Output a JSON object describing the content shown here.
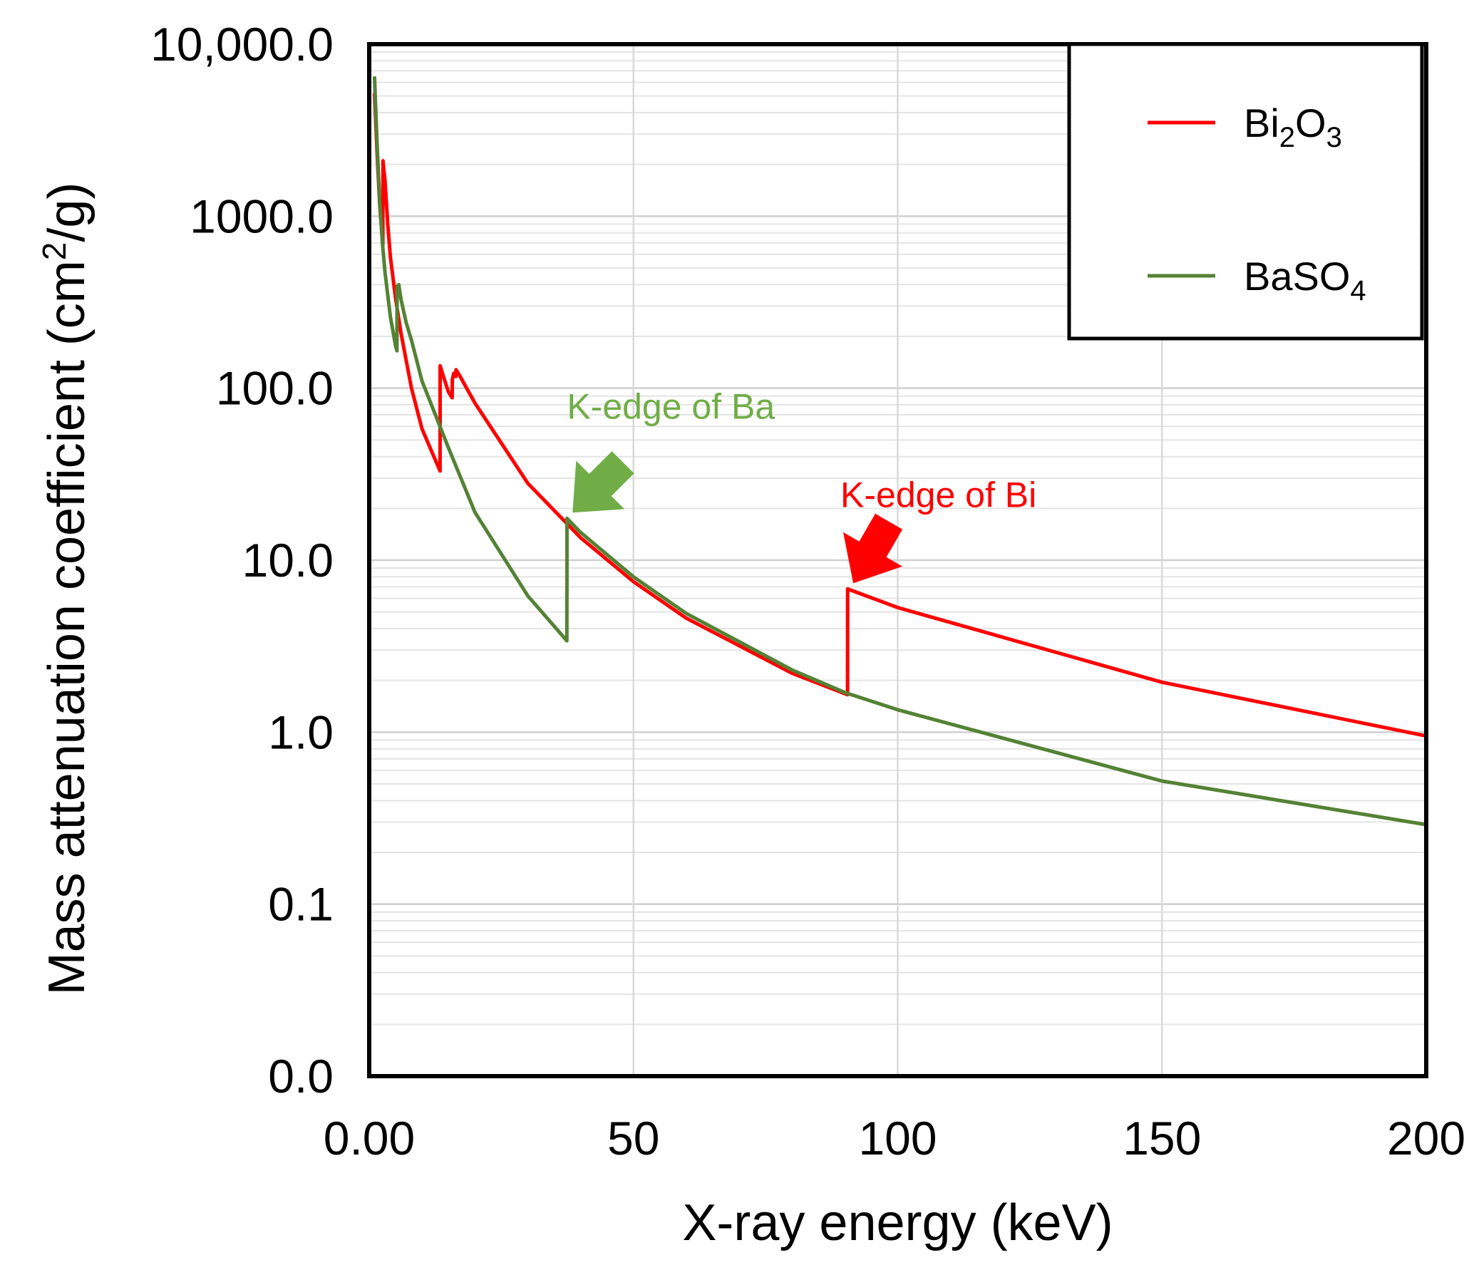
{
  "chart_data": {
    "type": "line",
    "xlabel": "X-ray energy (keV)",
    "ylabel": {
      "prefix": "Mass attenuation coefficient (cm",
      "sup": "2",
      "suffix": "/g)"
    },
    "y_scale": "log",
    "xlim": [
      0,
      200
    ],
    "ylim": [
      0.01,
      10000
    ],
    "grid": true,
    "x_ticks": [
      {
        "value": 0,
        "label": "0.00"
      },
      {
        "value": 50,
        "label": "50"
      },
      {
        "value": 100,
        "label": "100"
      },
      {
        "value": 150,
        "label": "150"
      },
      {
        "value": 200,
        "label": "200"
      }
    ],
    "y_ticks": [
      {
        "value": 0.01,
        "label": "0.0"
      },
      {
        "value": 0.1,
        "label": "0.1"
      },
      {
        "value": 1,
        "label": "1.0"
      },
      {
        "value": 10,
        "label": "10.0"
      },
      {
        "value": 100,
        "label": "100.0"
      },
      {
        "value": 1000,
        "label": "1000.0"
      },
      {
        "value": 10000,
        "label": "10,000.0"
      }
    ],
    "legend_position": "top-right",
    "series": [
      {
        "name": "Bi2O3",
        "label_parts": [
          "Bi",
          "2",
          "O",
          "3"
        ],
        "color": "#ff0000",
        "points": [
          [
            1.0,
            5200
          ],
          [
            1.5,
            2300
          ],
          [
            2.0,
            1150
          ],
          [
            2.58,
            680
          ],
          [
            2.6,
            2100
          ],
          [
            3.0,
            1600
          ],
          [
            3.5,
            900
          ],
          [
            4.0,
            580
          ],
          [
            5.0,
            330
          ],
          [
            6.0,
            210
          ],
          [
            8.0,
            100
          ],
          [
            10.0,
            58
          ],
          [
            13.4,
            33
          ],
          [
            13.42,
            135
          ],
          [
            14.0,
            118
          ],
          [
            15.0,
            95
          ],
          [
            15.7,
            88
          ],
          [
            15.72,
            112
          ],
          [
            16.0,
            122
          ],
          [
            16.4,
            117
          ],
          [
            16.42,
            128
          ],
          [
            17.0,
            120
          ],
          [
            20.0,
            82
          ],
          [
            30.0,
            28
          ],
          [
            40.0,
            13.5
          ],
          [
            50.0,
            7.5
          ],
          [
            60.0,
            4.6
          ],
          [
            80.0,
            2.2
          ],
          [
            90.5,
            1.65
          ],
          [
            90.52,
            6.8
          ],
          [
            100.0,
            5.3
          ],
          [
            150.0,
            1.95
          ],
          [
            200.0,
            0.95
          ]
        ]
      },
      {
        "name": "BaSO4",
        "label_parts": [
          "BaSO",
          "4"
        ],
        "color": "#548235",
        "points": [
          [
            1.0,
            6500
          ],
          [
            1.5,
            2600
          ],
          [
            2.0,
            1200
          ],
          [
            2.5,
            700
          ],
          [
            3.0,
            470
          ],
          [
            4.0,
            260
          ],
          [
            5.0,
            175
          ],
          [
            5.25,
            165
          ],
          [
            5.27,
            390
          ],
          [
            5.6,
            400
          ],
          [
            6.0,
            330
          ],
          [
            7.0,
            240
          ],
          [
            8.0,
            190
          ],
          [
            10.0,
            110
          ],
          [
            15.0,
            45
          ],
          [
            20.0,
            19
          ],
          [
            30.0,
            6.2
          ],
          [
            37.4,
            3.4
          ],
          [
            37.42,
            17.5
          ],
          [
            40.0,
            14.5
          ],
          [
            50.0,
            8.0
          ],
          [
            60.0,
            4.9
          ],
          [
            80.0,
            2.3
          ],
          [
            90.0,
            1.7
          ],
          [
            100.0,
            1.35
          ],
          [
            150.0,
            0.52
          ],
          [
            200.0,
            0.29
          ]
        ]
      }
    ],
    "annotations": [
      {
        "text": "K-edge of Ba",
        "color": "#70ad47",
        "x": 37.4,
        "y": 17.5
      },
      {
        "text": "K-edge of Bi",
        "color": "#ff0000",
        "x": 90.5,
        "y": 6.8
      }
    ]
  }
}
